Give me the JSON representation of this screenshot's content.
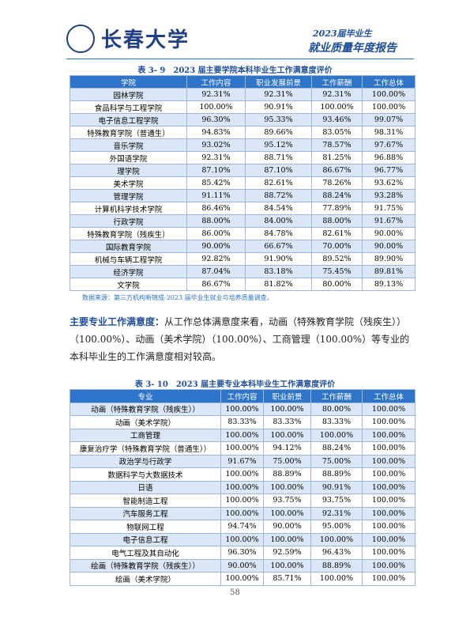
{
  "header": {
    "logo": "长春大学",
    "banner_year": "2023届毕业生",
    "banner_title": "就业质量年度报告"
  },
  "table1": {
    "caption": "表 3- 9　2023 届主要学院本科毕业生工作满意度评价",
    "columns": [
      "学院",
      "工作内容",
      "职业发展前景",
      "工作薪酬",
      "工作总体"
    ],
    "rows": [
      [
        "园林学院",
        "92.31%",
        "92.31%",
        "92.31%",
        "100.00%"
      ],
      [
        "食品科学与工程学院",
        "100.00%",
        "90.91%",
        "100.00%",
        "100.00%"
      ],
      [
        "电子信息工程学院",
        "96.30%",
        "95.33%",
        "93.46%",
        "99.07%"
      ],
      [
        "特殊教育学院（普通生）",
        "94.83%",
        "89.66%",
        "83.05%",
        "98.31%"
      ],
      [
        "音乐学院",
        "93.02%",
        "95.12%",
        "78.57%",
        "97.67%"
      ],
      [
        "外国语学院",
        "92.31%",
        "88.71%",
        "81.25%",
        "96.88%"
      ],
      [
        "理学院",
        "87.10%",
        "87.10%",
        "86.67%",
        "96.77%"
      ],
      [
        "美术学院",
        "85.42%",
        "82.61%",
        "78.26%",
        "93.62%"
      ],
      [
        "管理学院",
        "91.11%",
        "88.72%",
        "88.24%",
        "93.28%"
      ],
      [
        "计算机科学技术学院",
        "86.46%",
        "84.54%",
        "77.89%",
        "91.75%"
      ],
      [
        "行政学院",
        "88.00%",
        "84.00%",
        "88.00%",
        "91.67%"
      ],
      [
        "特殊教育学院（残疾生）",
        "86.00%",
        "84.78%",
        "82.61%",
        "90.00%"
      ],
      [
        "国际教育学院",
        "90.00%",
        "66.67%",
        "70.00%",
        "90.00%"
      ],
      [
        "机械与车辆工程学院",
        "92.82%",
        "91.90%",
        "89.52%",
        "89.90%"
      ],
      [
        "经济学院",
        "87.04%",
        "83.18%",
        "75.45%",
        "89.81%"
      ],
      [
        "文学院",
        "86.67%",
        "81.82%",
        "80.00%",
        "89.13%"
      ]
    ],
    "source": "数据来源：第三方机构新锦成-2023 届毕业生就业与培养质量调查。"
  },
  "paragraph": {
    "lead": "主要专业工作满意度：",
    "text": "从工作总体满意度来看，动画（特殊教育学院（残疾生））（100.00%）、动画（美术学院）（100.00%）、工商管理（100.00%）等专业的本科毕业生的工作满意度相对较高。"
  },
  "table2": {
    "caption": "表 3- 10　2023 届主要专业本科毕业生工作满意度评价",
    "columns": [
      "专业",
      "工作内容",
      "职业前景",
      "工作薪酬",
      "工作总体"
    ],
    "rows": [
      [
        "动画（特殊教育学院（残疾生））",
        "100.00%",
        "100.00%",
        "80.00%",
        "100.00%"
      ],
      [
        "动画（美术学院）",
        "83.33%",
        "83.33%",
        "83.33%",
        "100.00%"
      ],
      [
        "工商管理",
        "100.00%",
        "100.00%",
        "100.00%",
        "100.00%"
      ],
      [
        "康复治疗学（特殊教育学院（普通生））",
        "100.00%",
        "94.12%",
        "88.24%",
        "100.00%"
      ],
      [
        "政治学与行政学",
        "91.67%",
        "75.00%",
        "75.00%",
        "100.00%"
      ],
      [
        "数据科学与大数据技术",
        "100.00%",
        "88.89%",
        "88.89%",
        "100.00%"
      ],
      [
        "日语",
        "100.00%",
        "100.00%",
        "90.91%",
        "100.00%"
      ],
      [
        "智能制造工程",
        "100.00%",
        "93.75%",
        "93.75%",
        "100.00%"
      ],
      [
        "汽车服务工程",
        "100.00%",
        "100.00%",
        "92.31%",
        "100.00%"
      ],
      [
        "物联网工程",
        "94.74%",
        "90.00%",
        "95.00%",
        "100.00%"
      ],
      [
        "电子信息工程",
        "100.00%",
        "100.00%",
        "100.00%",
        "100.00%"
      ],
      [
        "电气工程及其自动化",
        "96.30%",
        "92.59%",
        "96.43%",
        "100.00%"
      ],
      [
        "绘画（特殊教育学院（残疾生））",
        "90.00%",
        "100.00%",
        "88.89%",
        "100.00%"
      ],
      [
        "绘画（美术学院）",
        "100.00%",
        "85.71%",
        "100.00%",
        "100.00%"
      ]
    ]
  },
  "footer": {
    "page": "58"
  }
}
